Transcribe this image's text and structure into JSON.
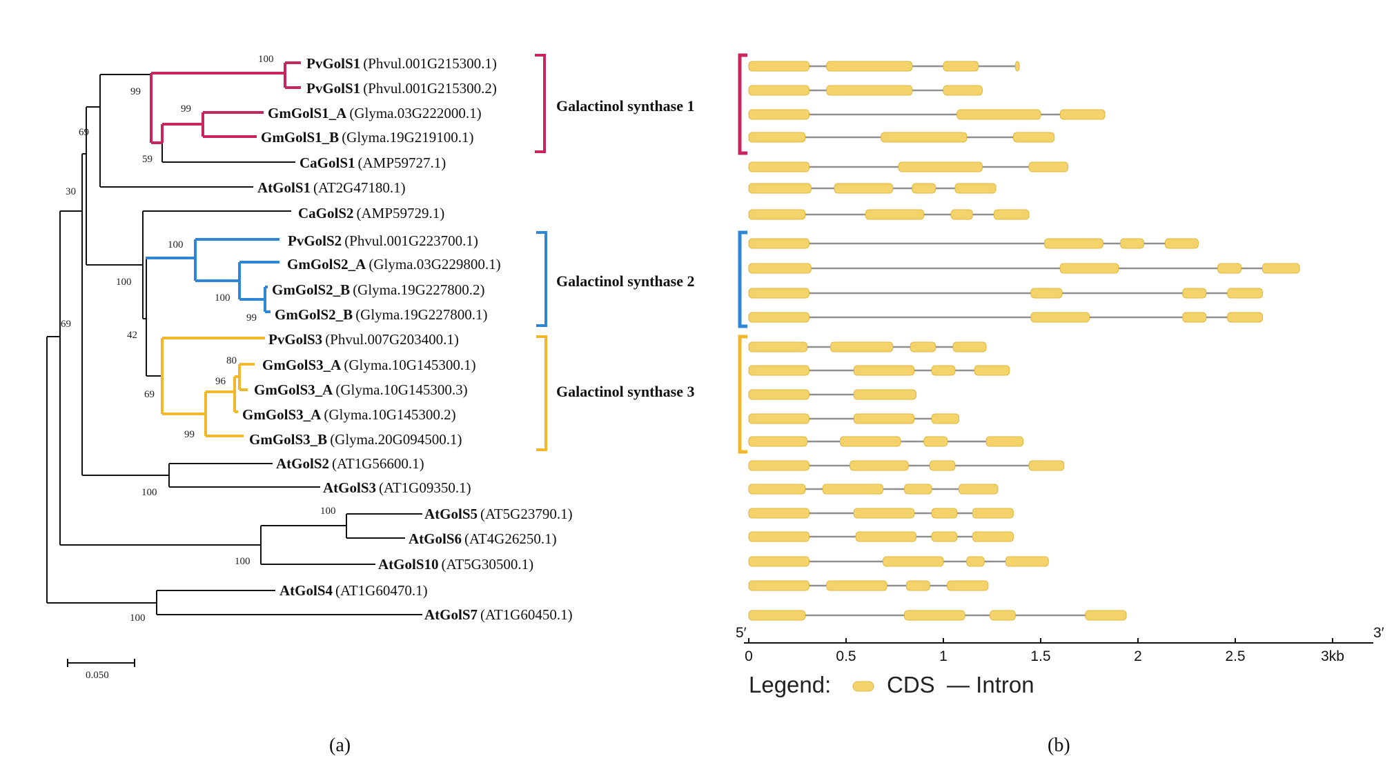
{
  "colors": {
    "group1": "#c8245e",
    "group2": "#2f86d4",
    "group3": "#f2b72a",
    "cds": "#f4d36b",
    "intron": "#8f8f8f",
    "black": "#111111"
  },
  "tree": {
    "leaves": [
      {
        "id": "L1",
        "name": "PvGolS1",
        "acc": "(Phvul.001G215300.1)",
        "group": 1
      },
      {
        "id": "L2",
        "name": "PvGolS1",
        "acc": "(Phvul.001G215300.2)",
        "group": 1
      },
      {
        "id": "L3",
        "name": "GmGolS1_A",
        "acc": "(Glyma.03G222000.1)",
        "group": 1
      },
      {
        "id": "L4",
        "name": "GmGolS1_B",
        "acc": "(Glyma.19G219100.1)",
        "group": 1
      },
      {
        "id": "L5",
        "name": "CaGolS1",
        "acc": "(AMP59727.1)",
        "group": 0
      },
      {
        "id": "L6",
        "name": "AtGolS1",
        "acc": "(AT2G47180.1)",
        "group": 0
      },
      {
        "id": "L7",
        "name": "CaGolS2",
        "acc": "(AMP59729.1)",
        "group": 0
      },
      {
        "id": "L8",
        "name": "PvGolS2",
        "acc": "(Phvul.001G223700.1)",
        "group": 2
      },
      {
        "id": "L9",
        "name": "GmGolS2_A",
        "acc": "(Glyma.03G229800.1)",
        "group": 2
      },
      {
        "id": "L10",
        "name": "GmGolS2_B",
        "acc": "(Glyma.19G227800.2)",
        "group": 2
      },
      {
        "id": "L11",
        "name": "GmGolS2_B",
        "acc": "(Glyma.19G227800.1)",
        "group": 2
      },
      {
        "id": "L12",
        "name": "PvGolS3",
        "acc": "(Phvul.007G203400.1)",
        "group": 3
      },
      {
        "id": "L13",
        "name": "GmGolS3_A",
        "acc": "(Glyma.10G145300.1)",
        "group": 3
      },
      {
        "id": "L14",
        "name": "GmGolS3_A",
        "acc": "(Glyma.10G145300.3)",
        "group": 3
      },
      {
        "id": "L15",
        "name": "GmGolS3_A",
        "acc": "(Glyma.10G145300.2)",
        "group": 3
      },
      {
        "id": "L16",
        "name": "GmGolS3_B",
        "acc": "(Glyma.20G094500.1)",
        "group": 3
      },
      {
        "id": "L17",
        "name": "AtGolS2",
        "acc": "(AT1G56600.1)",
        "group": 0
      },
      {
        "id": "L18",
        "name": "AtGolS3",
        "acc": "(AT1G09350.1)",
        "group": 0
      },
      {
        "id": "L19",
        "name": "AtGolS5",
        "acc": "(AT5G23790.1)",
        "group": 0
      },
      {
        "id": "L20",
        "name": "AtGolS6",
        "acc": "(AT4G26250.1)",
        "group": 0
      },
      {
        "id": "L21",
        "name": "AtGolS10",
        "acc": "(AT5G30500.1)",
        "group": 0
      },
      {
        "id": "L22",
        "name": "AtGolS4",
        "acc": "(AT1G60470.1)",
        "group": 0
      },
      {
        "id": "L23",
        "name": "AtGolS7",
        "acc": "(AT1G60450.1)",
        "group": 0
      }
    ],
    "bootstrap": [
      "100",
      "99",
      "99",
      "69",
      "59",
      "30",
      "100",
      "100",
      "100",
      "99",
      "42",
      "80",
      "96",
      "69",
      "99",
      "69",
      "100",
      "100",
      "100",
      "100"
    ],
    "groups": [
      {
        "label": "Galactinol synthase 1",
        "color_key": "group1"
      },
      {
        "label": "Galactinol synthase 2",
        "color_key": "group2"
      },
      {
        "label": "Galactinol synthase 3",
        "color_key": "group3"
      }
    ],
    "scale_bar_label": "0.050"
  },
  "gene_structure": {
    "axis": {
      "ticks": [
        "0",
        "0.5",
        "1",
        "1.5",
        "2",
        "2.5",
        "3kb"
      ],
      "tick_values_kb": [
        0,
        0.5,
        1,
        1.5,
        2,
        2.5,
        3
      ],
      "five_prime": "5′",
      "three_prime": "3′"
    },
    "legend": {
      "title": "Legend:",
      "cds": "CDS",
      "intron": "— Intron"
    },
    "genes_kb": [
      {
        "length": 1.39,
        "exons": [
          [
            0,
            0.31
          ],
          [
            0.4,
            0.84
          ],
          [
            1.0,
            1.18
          ],
          [
            1.37,
            1.39
          ]
        ]
      },
      {
        "length": 1.2,
        "exons": [
          [
            0,
            0.31
          ],
          [
            0.4,
            0.84
          ],
          [
            1.0,
            1.2
          ]
        ]
      },
      {
        "length": 1.83,
        "exons": [
          [
            0,
            0.31
          ],
          [
            1.07,
            1.5
          ],
          [
            1.6,
            1.83
          ]
        ]
      },
      {
        "length": 1.57,
        "exons": [
          [
            0,
            0.29
          ],
          [
            0.68,
            1.12
          ],
          [
            1.36,
            1.57
          ]
        ]
      },
      {
        "length": 1.64,
        "exons": [
          [
            0,
            0.31
          ],
          [
            0.77,
            1.2
          ],
          [
            1.44,
            1.64
          ]
        ]
      },
      {
        "length": 1.27,
        "exons": [
          [
            0,
            0.32
          ],
          [
            0.44,
            0.74
          ],
          [
            0.84,
            0.96
          ],
          [
            1.06,
            1.27
          ]
        ]
      },
      {
        "length": 1.44,
        "exons": [
          [
            0,
            0.29
          ],
          [
            0.6,
            0.9
          ],
          [
            1.04,
            1.15
          ],
          [
            1.26,
            1.44
          ]
        ]
      },
      {
        "length": 2.31,
        "exons": [
          [
            0,
            0.31
          ],
          [
            1.52,
            1.82
          ],
          [
            1.91,
            2.03
          ],
          [
            2.14,
            2.31
          ]
        ]
      },
      {
        "length": 2.83,
        "exons": [
          [
            0,
            0.32
          ],
          [
            1.6,
            1.9
          ],
          [
            2.41,
            2.53
          ],
          [
            2.64,
            2.83
          ]
        ]
      },
      {
        "length": 2.64,
        "exons": [
          [
            0,
            0.31
          ],
          [
            1.45,
            1.61
          ],
          [
            2.23,
            2.35
          ],
          [
            2.46,
            2.64
          ]
        ]
      },
      {
        "length": 2.64,
        "exons": [
          [
            0,
            0.31
          ],
          [
            1.45,
            1.75
          ],
          [
            2.23,
            2.35
          ],
          [
            2.46,
            2.64
          ]
        ]
      },
      {
        "length": 1.22,
        "exons": [
          [
            0,
            0.3
          ],
          [
            0.42,
            0.74
          ],
          [
            0.83,
            0.96
          ],
          [
            1.05,
            1.22
          ]
        ]
      },
      {
        "length": 1.34,
        "exons": [
          [
            0,
            0.31
          ],
          [
            0.54,
            0.85
          ],
          [
            0.94,
            1.06
          ],
          [
            1.16,
            1.34
          ]
        ]
      },
      {
        "length": 0.86,
        "exons": [
          [
            0,
            0.31
          ],
          [
            0.54,
            0.86
          ]
        ]
      },
      {
        "length": 1.08,
        "exons": [
          [
            0,
            0.31
          ],
          [
            0.54,
            0.85
          ],
          [
            0.94,
            1.08
          ]
        ]
      },
      {
        "length": 1.41,
        "exons": [
          [
            0,
            0.3
          ],
          [
            0.47,
            0.78
          ],
          [
            0.9,
            1.02
          ],
          [
            1.22,
            1.41
          ]
        ]
      },
      {
        "length": 1.62,
        "exons": [
          [
            0,
            0.31
          ],
          [
            0.52,
            0.82
          ],
          [
            0.93,
            1.06
          ],
          [
            1.44,
            1.62
          ]
        ]
      },
      {
        "length": 1.28,
        "exons": [
          [
            0,
            0.29
          ],
          [
            0.38,
            0.69
          ],
          [
            0.8,
            0.94
          ],
          [
            1.08,
            1.28
          ]
        ]
      },
      {
        "length": 1.36,
        "exons": [
          [
            0,
            0.31
          ],
          [
            0.54,
            0.85
          ],
          [
            0.94,
            1.07
          ],
          [
            1.15,
            1.36
          ]
        ]
      },
      {
        "length": 1.36,
        "exons": [
          [
            0,
            0.31
          ],
          [
            0.55,
            0.86
          ],
          [
            0.94,
            1.07
          ],
          [
            1.15,
            1.36
          ]
        ]
      },
      {
        "length": 1.54,
        "exons": [
          [
            0,
            0.31
          ],
          [
            0.69,
            1.0
          ],
          [
            1.12,
            1.21
          ],
          [
            1.32,
            1.54
          ]
        ]
      },
      {
        "length": 1.23,
        "exons": [
          [
            0,
            0.31
          ],
          [
            0.4,
            0.71
          ],
          [
            0.81,
            0.93
          ],
          [
            1.02,
            1.23
          ]
        ]
      },
      {
        "length": 1.94,
        "exons": [
          [
            0,
            0.29
          ],
          [
            0.8,
            1.11
          ],
          [
            1.24,
            1.37
          ],
          [
            1.73,
            1.94
          ]
        ]
      }
    ]
  },
  "panel_labels": {
    "a": "(a)",
    "b": "(b)"
  }
}
